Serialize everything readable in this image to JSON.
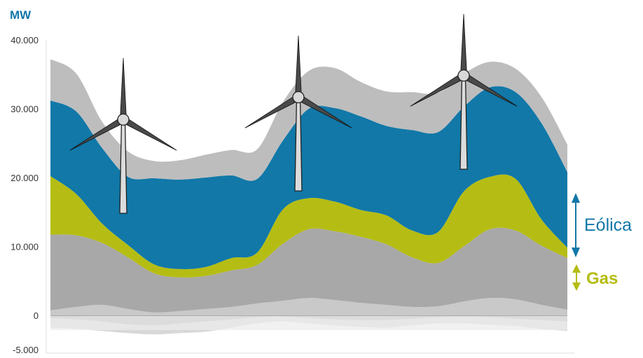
{
  "chart_data": {
    "type": "area",
    "title": "",
    "xlabel": "",
    "ylabel": "MW",
    "ylim": [
      -5000,
      40000
    ],
    "yticks": [
      {
        "value": 40000,
        "label": "40.000"
      },
      {
        "value": 30000,
        "label": "30.000"
      },
      {
        "value": 20000,
        "label": "20.000"
      },
      {
        "value": 10000,
        "label": "10.000"
      },
      {
        "value": 0,
        "label": "0"
      },
      {
        "value": -5000,
        "label": "-5.000"
      }
    ],
    "x": [
      0,
      5,
      10,
      15,
      20,
      25,
      30,
      35,
      40,
      45,
      50,
      55,
      60,
      65,
      70,
      75,
      80,
      85,
      90,
      95,
      100
    ],
    "series": [
      {
        "name": "",
        "color": "#c9c9c9",
        "values": [
          700,
          1200,
          1500,
          900,
          400,
          600,
          900,
          1200,
          1700,
          2100,
          2500,
          2200,
          1800,
          1500,
          1200,
          1300,
          2000,
          2500,
          2300,
          1500,
          800
        ]
      },
      {
        "name": "",
        "color": "#a8a8a8",
        "values": [
          11000,
          10400,
          9000,
          7500,
          5700,
          4900,
          4800,
          5300,
          5600,
          8300,
          10000,
          10000,
          9600,
          8800,
          7200,
          6300,
          8000,
          10000,
          10000,
          8600,
          7500
        ]
      },
      {
        "name": "Gas",
        "color": "#b5bd14",
        "values": [
          8500,
          6000,
          2800,
          1800,
          1300,
          1200,
          1300,
          1800,
          1800,
          5000,
          4500,
          4300,
          3900,
          4200,
          3900,
          4500,
          8000,
          7600,
          7500,
          3800,
          1500
        ]
      },
      {
        "name": "Eólica",
        "color": "#1178a8",
        "values": [
          11000,
          12000,
          11000,
          9900,
          12500,
          13000,
          13000,
          12000,
          10700,
          10000,
          13000,
          13600,
          13600,
          13000,
          14600,
          14500,
          12300,
          13000,
          12600,
          14000,
          11000
        ]
      },
      {
        "name": "",
        "color": "#bdbdbd",
        "values": [
          6000,
          5500,
          3800,
          3700,
          2500,
          2800,
          3300,
          3700,
          4300,
          5600,
          5500,
          5800,
          5000,
          5000,
          5500,
          5700,
          4800,
          3700,
          3400,
          3800,
          4000
        ]
      }
    ],
    "negative_series": [
      {
        "name": "",
        "color": "#d8d8d8",
        "values": [
          -1800,
          -2000,
          -2300,
          -2600,
          -2800,
          -2600,
          -2400,
          -1800,
          -1200,
          -900,
          -1200,
          -1500,
          -1700,
          -1800,
          -1500,
          -1200,
          -1200,
          -1400,
          -1600,
          -2000,
          -2300
        ]
      },
      {
        "name": "",
        "color": "#aaaaaa",
        "values": [
          -400,
          -600,
          -900,
          -1300,
          -1500,
          -1200,
          -900,
          -600,
          -300,
          -200,
          -400,
          -600,
          -700,
          -700,
          -500,
          -300,
          -200,
          -300,
          -500,
          -700,
          -900
        ]
      }
    ],
    "annotations": [
      {
        "text": "Eólica",
        "color": "#1278a8",
        "series": "Eólica"
      },
      {
        "text": "Gas",
        "color": "#b5bd14",
        "series": "Gas"
      }
    ],
    "grid": false,
    "legend": "none",
    "decorations": [
      "wind-turbine",
      "wind-turbine",
      "wind-turbine"
    ]
  }
}
